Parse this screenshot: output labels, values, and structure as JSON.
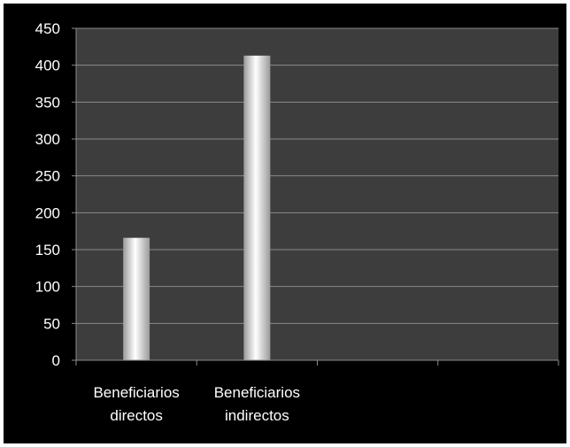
{
  "chart_data": {
    "type": "bar",
    "categories": [
      [
        "Beneficiarios",
        "directos"
      ],
      [
        "Beneficiarios",
        "indirectos"
      ],
      [
        "",
        ""
      ],
      [
        "",
        ""
      ]
    ],
    "values": [
      166,
      413,
      null,
      null
    ],
    "ylim": [
      0,
      450
    ],
    "yticks": [
      "0",
      "50",
      "100",
      "150",
      "200",
      "250",
      "300",
      "350",
      "400",
      "450"
    ],
    "grid": true,
    "colors": {
      "plot_background": "#3d3d3d",
      "chart_background": "#000000",
      "gridline": "#8a8a8a",
      "bar_center": "#ffffff",
      "bar_edge": "#9a9a9a"
    }
  }
}
